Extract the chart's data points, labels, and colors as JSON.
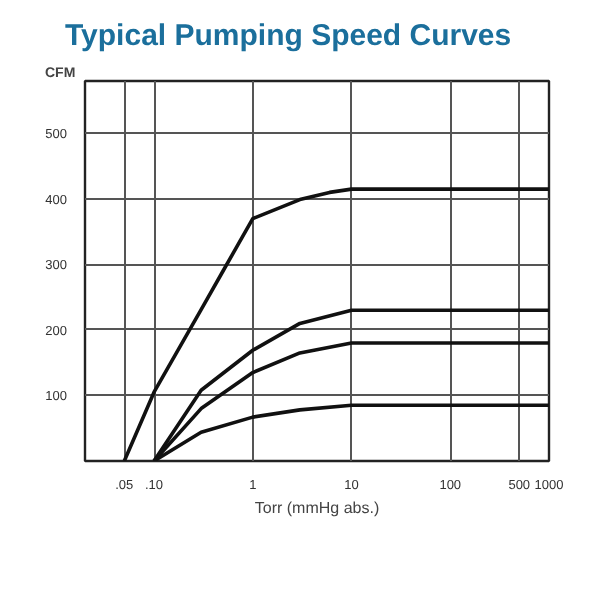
{
  "chart_data": {
    "type": "line",
    "title": "Typical Pumping Speed Curves",
    "xlabel": "Torr (mmHg abs.)",
    "ylabel": "CFM",
    "log": "x",
    "xlim": [
      0.02,
      1000
    ],
    "ylim": [
      0,
      580
    ],
    "xticks": [
      {
        "value": 0.05,
        "label": ".05"
      },
      {
        "value": 0.1,
        "label": ".10"
      },
      1,
      10,
      100,
      500,
      1000
    ],
    "yticks": [
      {
        "value": 0,
        "label": null
      },
      100,
      200,
      300,
      400,
      500
    ],
    "grid": true,
    "marker": "none",
    "line_style": "solid",
    "series": [
      {
        "color": "#111111",
        "x": [
          0.05,
          0.1,
          0.3,
          0.5,
          1,
          3,
          6,
          10,
          1000
        ],
        "values": [
          0,
          105,
          231,
          290,
          370,
          399,
          410,
          415,
          415
        ]
      },
      {
        "color": "#111111",
        "x": [
          0.1,
          0.3,
          1,
          3,
          10,
          1000
        ],
        "values": [
          0,
          108,
          169,
          210,
          230,
          230
        ]
      },
      {
        "color": "#111111",
        "x": [
          0.1,
          0.3,
          1,
          3,
          10,
          1000
        ],
        "values": [
          0,
          80,
          135,
          165,
          180,
          180
        ]
      },
      {
        "color": "#111111",
        "x": [
          0.1,
          0.3,
          1,
          3,
          10,
          1000
        ],
        "values": [
          0,
          44,
          67,
          78,
          85,
          85
        ]
      }
    ]
  }
}
